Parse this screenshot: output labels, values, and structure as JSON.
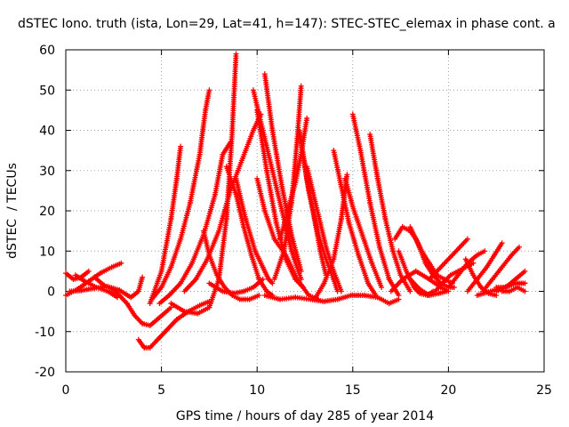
{
  "chart_data": {
    "type": "scatter",
    "title": "dSTEC Iono. truth (ista, Lon=29, Lat=41, h=147): STEC-STEC_elemax in phase cont. a",
    "xlabel": "GPS time / hours of day 285 of year 2014",
    "ylabel": "dSTEC  / TECUs",
    "xlim": [
      0,
      25
    ],
    "ylim": [
      -20,
      60
    ],
    "xticks": [
      0,
      5,
      10,
      15,
      20,
      25
    ],
    "yticks": [
      -20,
      -10,
      0,
      10,
      20,
      30,
      40,
      50,
      60
    ],
    "grid": true,
    "marker": "plus",
    "color": "#ff0000",
    "series": [
      {
        "x": [
          0.0,
          0.4,
          0.8,
          1.2
        ],
        "y": [
          4.5,
          3.0,
          3.5,
          5.0
        ]
      },
      {
        "x": [
          0.0,
          0.6,
          1.2,
          1.8,
          2.4,
          2.9
        ],
        "y": [
          -1.0,
          0.5,
          2.5,
          4.5,
          6.0,
          7.0
        ]
      },
      {
        "x": [
          0.2,
          0.8,
          1.5,
          2.2,
          2.8,
          3.4,
          3.8,
          4.0
        ],
        "y": [
          0.0,
          0.2,
          0.8,
          1.2,
          0.3,
          -1.5,
          0.0,
          3.5
        ]
      },
      {
        "x": [
          0.5,
          1.0,
          1.6,
          2.2,
          2.7
        ],
        "y": [
          4.0,
          2.5,
          1.0,
          0.0,
          -1.5
        ]
      },
      {
        "x": [
          1.5,
          2.0,
          2.6,
          3.2,
          3.6,
          4.0,
          4.4,
          4.9,
          5.5
        ],
        "y": [
          3.5,
          1.5,
          0.0,
          -3.0,
          -6.0,
          -8.0,
          -8.5,
          -6.5,
          -4.0
        ]
      },
      {
        "x": [
          3.8,
          4.1,
          4.4,
          4.8,
          5.3,
          5.8,
          6.4,
          7.0,
          7.5
        ],
        "y": [
          -12.0,
          -14.0,
          -14.0,
          -12.0,
          -9.5,
          -7.0,
          -5.0,
          -3.5,
          -2.5
        ]
      },
      {
        "x": [
          4.5,
          5.0,
          5.5,
          6.0,
          6.5,
          7.0,
          7.3,
          7.5
        ],
        "y": [
          -2.0,
          1.0,
          6.0,
          13.0,
          22.0,
          34.0,
          45.0,
          50.0
        ]
      },
      {
        "x": [
          4.4,
          5.0,
          5.5,
          5.8,
          6.0
        ],
        "y": [
          -3.0,
          5.0,
          18.0,
          28.0,
          36.0
        ]
      },
      {
        "x": [
          4.9,
          5.4,
          6.0,
          6.6,
          7.2,
          7.8,
          8.2,
          8.6
        ],
        "y": [
          -3.0,
          -1.0,
          2.0,
          7.0,
          14.0,
          24.0,
          34.0,
          37.0
        ]
      },
      {
        "x": [
          5.5,
          6.2,
          6.9,
          7.5,
          8.0,
          8.4,
          8.7,
          8.9
        ],
        "y": [
          -3.0,
          -5.0,
          -5.5,
          -4.0,
          3.0,
          18.0,
          40.0,
          59.0
        ]
      },
      {
        "x": [
          6.2,
          6.8,
          7.4,
          8.0,
          8.6,
          9.0,
          9.4,
          9.8,
          10.2
        ],
        "y": [
          0.0,
          3.0,
          8.0,
          15.0,
          25.0,
          30.0,
          35.0,
          40.0,
          44.0
        ]
      },
      {
        "x": [
          7.2,
          7.5,
          7.9,
          8.3,
          8.7,
          9.1,
          9.6,
          10.1
        ],
        "y": [
          15.0,
          9.0,
          4.0,
          1.0,
          -1.0,
          -2.0,
          -2.0,
          -1.0
        ]
      },
      {
        "x": [
          7.5,
          8.2,
          8.8,
          9.3,
          9.8,
          10.3
        ],
        "y": [
          2.0,
          0.0,
          -0.5,
          0.0,
          1.0,
          3.0
        ]
      },
      {
        "x": [
          8.4,
          8.9,
          9.3,
          9.7,
          10.1,
          10.5,
          10.8
        ],
        "y": [
          31.0,
          24.0,
          16.0,
          9.0,
          3.0,
          0.0,
          -1.0
        ]
      },
      {
        "x": [
          8.9,
          9.4,
          9.9,
          10.3,
          10.6,
          10.8
        ],
        "y": [
          28.0,
          18.0,
          10.0,
          6.0,
          3.0,
          2.0
        ]
      },
      {
        "x": [
          9.8,
          10.3,
          10.8,
          11.3,
          11.8,
          12.3
        ],
        "y": [
          50.0,
          40.0,
          30.0,
          20.0,
          10.0,
          3.0
        ]
      },
      {
        "x": [
          10.4,
          10.8,
          11.3,
          11.8,
          12.3
        ],
        "y": [
          54.0,
          40.0,
          26.0,
          14.0,
          5.0
        ]
      },
      {
        "x": [
          10.0,
          10.5,
          11.0,
          11.5,
          12.0,
          12.4
        ],
        "y": [
          45.0,
          30.0,
          17.0,
          8.0,
          3.0,
          1.0
        ]
      },
      {
        "x": [
          10.0,
          10.4,
          10.9,
          11.5,
          12.1,
          12.7,
          13.2
        ],
        "y": [
          28.0,
          20.0,
          13.0,
          9.0,
          3.0,
          -1.0,
          -2.0
        ]
      },
      {
        "x": [
          10.9,
          11.4,
          11.8,
          12.1,
          12.3
        ],
        "y": [
          3.0,
          10.0,
          22.0,
          38.0,
          51.0
        ]
      },
      {
        "x": [
          11.2,
          11.6,
          12.0,
          12.3,
          12.6
        ],
        "y": [
          13.0,
          20.0,
          27.0,
          34.0,
          43.0
        ]
      },
      {
        "x": [
          12.2,
          12.6,
          13.0,
          13.3,
          13.6
        ],
        "y": [
          40.0,
          28.0,
          18.0,
          10.0,
          4.0
        ]
      },
      {
        "x": [
          12.6,
          12.9,
          13.3,
          13.6,
          14.0,
          14.4
        ],
        "y": [
          31.0,
          25.0,
          17.0,
          11.0,
          5.0,
          0.0
        ]
      },
      {
        "x": [
          12.2,
          12.7,
          13.2,
          13.6,
          14.0,
          14.2
        ],
        "y": [
          40.0,
          25.0,
          14.0,
          8.0,
          3.0,
          0.0
        ]
      },
      {
        "x": [
          10.4,
          11.2,
          12.0,
          12.8,
          13.5,
          14.2
        ],
        "y": [
          -1.0,
          -2.0,
          -1.5,
          -2.0,
          -2.5,
          -2.0
        ]
      },
      {
        "x": [
          14.0,
          14.4,
          14.8,
          15.3,
          15.8,
          16.2
        ],
        "y": [
          35.0,
          26.0,
          17.0,
          9.0,
          2.0,
          -1.0
        ]
      },
      {
        "x": [
          14.6,
          15.0,
          15.5,
          16.0,
          16.5
        ],
        "y": [
          28.0,
          21.0,
          14.0,
          7.0,
          1.0
        ]
      },
      {
        "x": [
          13.0,
          13.5,
          14.0,
          14.4,
          14.7
        ],
        "y": [
          -2.0,
          2.0,
          8.0,
          18.0,
          29.0
        ]
      },
      {
        "x": [
          15.0,
          15.4,
          15.9,
          16.4,
          16.9,
          17.4
        ],
        "y": [
          44.0,
          35.0,
          22.0,
          11.0,
          3.0,
          -1.0
        ]
      },
      {
        "x": [
          15.9,
          16.3,
          16.7,
          17.1,
          17.5,
          18.0
        ],
        "y": [
          39.0,
          28.0,
          18.0,
          10.0,
          4.0,
          0.0
        ]
      },
      {
        "x": [
          14.2,
          14.9,
          15.6,
          16.3,
          16.9,
          17.4
        ],
        "y": [
          -2.0,
          -1.0,
          -1.0,
          -1.5,
          -3.0,
          -2.0
        ]
      },
      {
        "x": [
          17.2,
          17.6,
          18.0,
          18.3,
          18.6,
          18.8
        ],
        "y": [
          13.0,
          16.0,
          15.0,
          13.0,
          10.0,
          8.0
        ]
      },
      {
        "x": [
          17.4,
          17.8,
          18.2,
          18.5,
          18.9,
          19.2
        ],
        "y": [
          10.0,
          5.0,
          1.0,
          -0.5,
          -1.0,
          0.0
        ]
      },
      {
        "x": [
          18.0,
          18.4,
          18.8,
          19.2,
          19.6,
          20.0,
          20.3
        ],
        "y": [
          16.0,
          12.0,
          7.0,
          4.0,
          2.0,
          1.0,
          1.0
        ]
      },
      {
        "x": [
          18.6,
          19.0,
          19.4,
          19.8,
          20.2
        ],
        "y": [
          10.0,
          7.0,
          4.0,
          3.0,
          2.0
        ]
      },
      {
        "x": [
          17.0,
          17.6,
          18.3,
          19.0,
          19.6,
          20.0
        ],
        "y": [
          0.0,
          3.0,
          5.0,
          3.0,
          1.0,
          0.0
        ]
      },
      {
        "x": [
          18.0,
          18.5,
          19.0,
          19.5,
          19.9
        ],
        "y": [
          3.0,
          0.5,
          -1.0,
          -0.5,
          0.0
        ]
      },
      {
        "x": [
          19.0,
          19.4,
          19.8,
          20.2,
          20.6,
          21.0
        ],
        "y": [
          3.0,
          5.0,
          7.0,
          9.0,
          11.0,
          13.0
        ]
      },
      {
        "x": [
          19.3,
          19.7,
          20.1,
          20.5,
          20.9,
          21.3
        ],
        "y": [
          0.0,
          2.0,
          4.0,
          5.0,
          6.0,
          7.0
        ]
      },
      {
        "x": [
          20.0,
          20.5,
          21.0,
          21.5,
          21.9
        ],
        "y": [
          1.0,
          4.0,
          7.0,
          9.0,
          10.0
        ]
      },
      {
        "x": [
          20.9,
          21.3,
          21.7,
          22.1,
          22.5
        ],
        "y": [
          8.0,
          4.0,
          1.0,
          -0.5,
          -1.0
        ]
      },
      {
        "x": [
          21.0,
          21.5,
          22.0,
          22.4,
          22.8
        ],
        "y": [
          0.0,
          3.0,
          6.0,
          9.0,
          12.0
        ]
      },
      {
        "x": [
          21.8,
          22.3,
          22.8,
          23.3,
          23.7
        ],
        "y": [
          0.0,
          3.0,
          6.0,
          9.0,
          11.0
        ]
      },
      {
        "x": [
          21.5,
          22.2,
          22.9,
          23.5,
          24.0
        ],
        "y": [
          -1.0,
          0.0,
          1.0,
          2.0,
          2.0
        ]
      },
      {
        "x": [
          22.5,
          23.0,
          23.5,
          24.0
        ],
        "y": [
          0.0,
          1.0,
          3.0,
          5.0
        ]
      },
      {
        "x": [
          22.8,
          23.2,
          23.6,
          24.0
        ],
        "y": [
          0.0,
          0.0,
          1.0,
          0.0
        ]
      },
      {
        "x": [
          22.5,
          23.0,
          23.5,
          24.0
        ],
        "y": [
          1.0,
          1.0,
          2.0,
          2.0
        ]
      }
    ]
  }
}
